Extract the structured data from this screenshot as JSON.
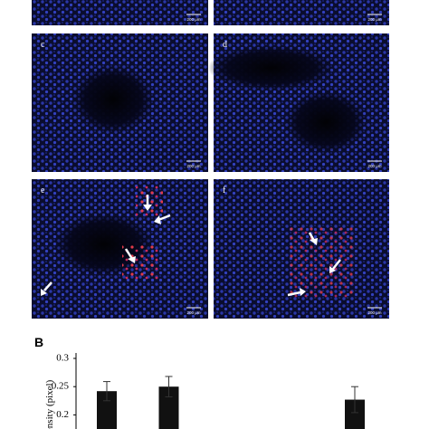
{
  "panels": [
    {
      "scale_bar": "200 μm"
    },
    {
      "scale_bar": "200 μm"
    },
    {
      "label": "c",
      "scale_bar": "200 μm"
    },
    {
      "label": "d",
      "scale_bar": "200 μm"
    },
    {
      "label": "e",
      "scale_bar": "200 μm"
    },
    {
      "label": "f",
      "scale_bar": "200 μm"
    }
  ],
  "figure_label": "B",
  "chart_data": {
    "type": "bar",
    "y_label": "Intensity (pixel)",
    "categories": [
      null,
      null,
      null,
      null,
      null
    ],
    "values": [
      0.242,
      0.25,
      null,
      null,
      0.227
    ],
    "errors": [
      0.017,
      0.018,
      null,
      null,
      0.023
    ],
    "color": "#111111",
    "ylim": [
      0.175,
      0.3
    ],
    "yticks": [
      0.3,
      0.25,
      0.2
    ],
    "grid": false
  }
}
